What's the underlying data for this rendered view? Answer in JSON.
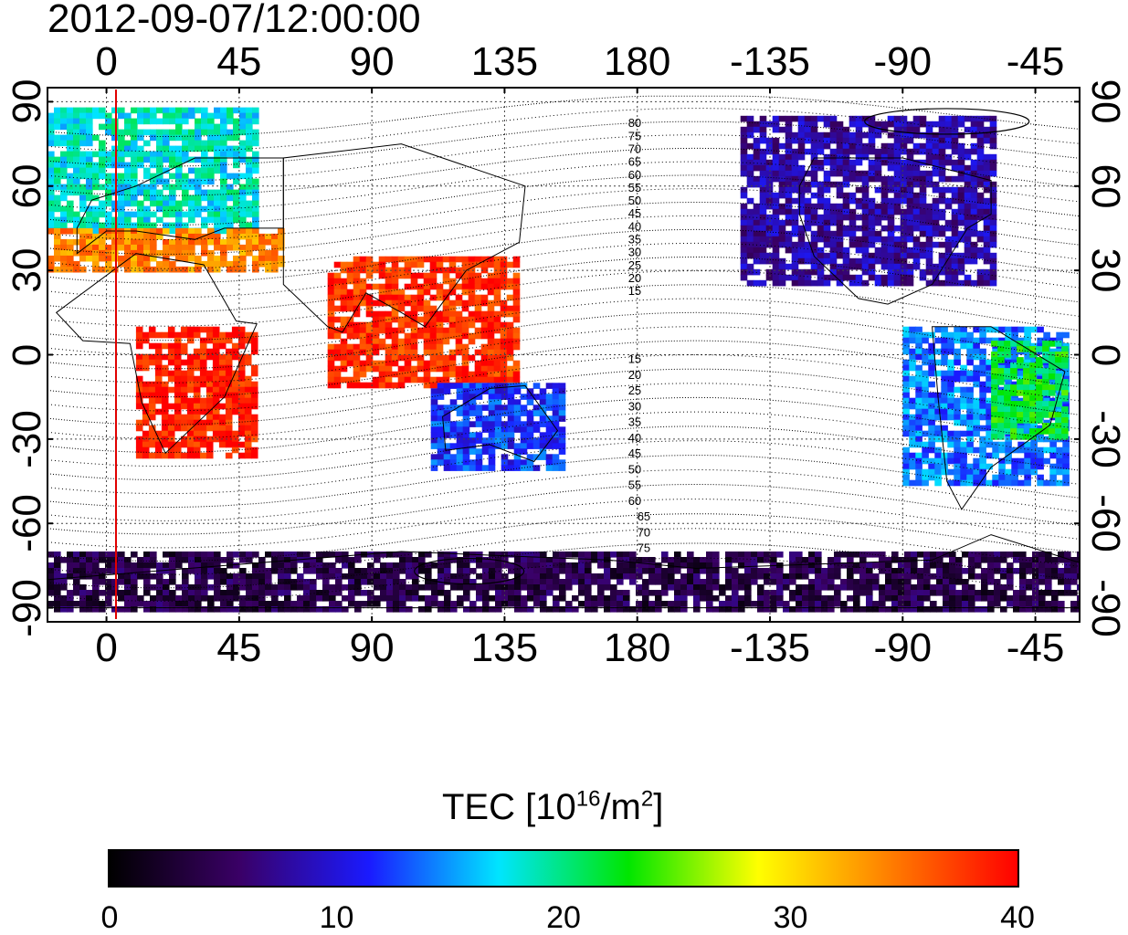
{
  "title": "2012-09-07/12:00:00",
  "axes": {
    "x_top_ticks": [
      "0",
      "45",
      "90",
      "135",
      "180",
      "-135",
      "-90",
      "-45"
    ],
    "x_bottom_ticks": [
      "0",
      "45",
      "90",
      "135",
      "180",
      "-135",
      "-90",
      "-45"
    ],
    "y_left_ticks": [
      "90",
      "60",
      "30",
      "0",
      "-30",
      "-60",
      "-90"
    ],
    "y_right_ticks": [
      "90",
      "60",
      "30",
      "0",
      "-30",
      "-60",
      "-90"
    ],
    "lon_range": [
      -20,
      330
    ],
    "lat_range": [
      -95,
      95
    ]
  },
  "contour_labels_north": [
    "80",
    "75",
    "70",
    "65",
    "60",
    "55",
    "50",
    "45",
    "40",
    "35",
    "30",
    "25",
    "20",
    "15"
  ],
  "contour_labels_south": [
    "15",
    "20",
    "25",
    "30",
    "35",
    "40",
    "45",
    "50",
    "55",
    "60",
    "65",
    "70",
    "75"
  ],
  "colorbar": {
    "title_prefix": "TEC  [10",
    "title_exp": "16",
    "title_mid": "/m",
    "title_exp2": "2",
    "title_suffix": "]",
    "labels": [
      "0",
      "10",
      "20",
      "30",
      "40"
    ],
    "range": [
      0,
      40
    ],
    "colors": [
      "#000000",
      "#3a0066",
      "#1a1aff",
      "#00e5ff",
      "#00e600",
      "#ffff00",
      "#ff8000",
      "#ff0000"
    ]
  },
  "chart_data": {
    "type": "heatmap",
    "title": "2012-09-07/12:00:00",
    "xlabel": "",
    "ylabel": "",
    "value_label": "TEC [10^16/m^2]",
    "vrange": [
      0,
      40
    ],
    "reference_meridian_lon": 0,
    "regions": [
      {
        "lon_range": [
          -20,
          50
        ],
        "lat_range": [
          45,
          88
        ],
        "tec": 18
      },
      {
        "lon_range": [
          -20,
          60
        ],
        "lat_range": [
          30,
          45
        ],
        "tec": 34
      },
      {
        "lon_range": [
          10,
          50
        ],
        "lat_range": [
          -35,
          10
        ],
        "tec": 39
      },
      {
        "lon_range": [
          75,
          140
        ],
        "lat_range": [
          -10,
          35
        ],
        "tec": 38
      },
      {
        "lon_range": [
          110,
          155
        ],
        "lat_range": [
          -40,
          -10
        ],
        "tec": 12
      },
      {
        "lon_range": [
          215,
          300
        ],
        "lat_range": [
          25,
          85
        ],
        "tec": 8
      },
      {
        "lon_range": [
          270,
          325
        ],
        "lat_range": [
          -45,
          10
        ],
        "tec": 14
      },
      {
        "lon_range": [
          300,
          325
        ],
        "lat_range": [
          -30,
          5
        ],
        "tec": 22
      },
      {
        "lon_range": [
          -20,
          330
        ],
        "lat_range": [
          -90,
          -70
        ],
        "tec": 4
      }
    ]
  }
}
